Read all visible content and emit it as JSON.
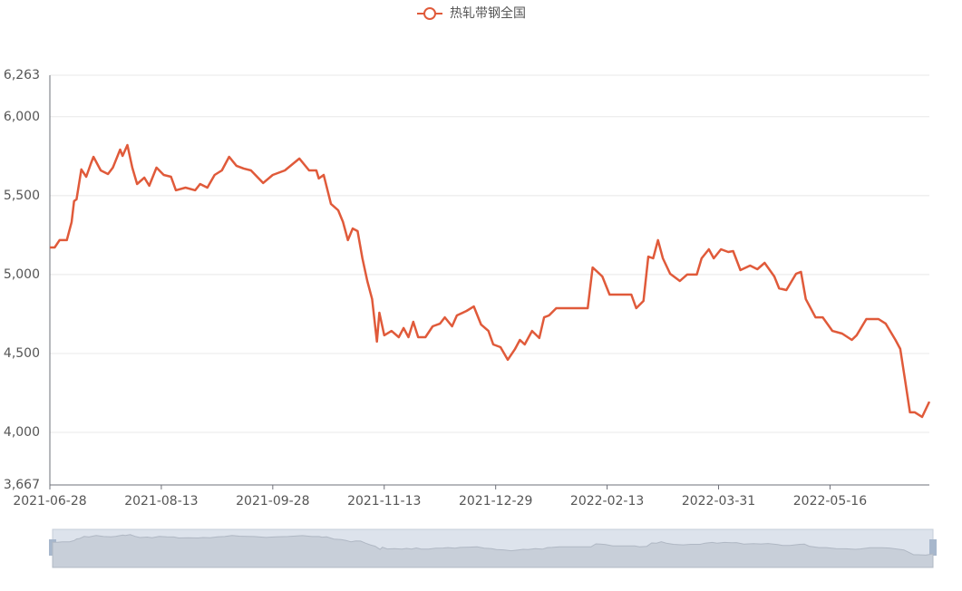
{
  "chart_data": {
    "type": "line",
    "xlim": [
      "2021-06-28",
      "2022-06-26"
    ],
    "xticks": [
      "2021-06-28",
      "2021-08-13",
      "2021-09-28",
      "2021-11-13",
      "2021-12-29",
      "2022-02-13",
      "2022-03-31",
      "2022-05-16"
    ],
    "ylim": [
      3667,
      6263
    ],
    "yticks": [
      {
        "value": 3667,
        "label": "3,667"
      },
      {
        "value": 4000,
        "label": "4,000"
      },
      {
        "value": 4500,
        "label": "4,500"
      },
      {
        "value": 5000,
        "label": "5,000"
      },
      {
        "value": 5500,
        "label": "5,500"
      },
      {
        "value": 6000,
        "label": "6,000"
      },
      {
        "value": 6263,
        "label": "6,263"
      }
    ],
    "grid": true,
    "legend": "top",
    "x": [
      "2021-06-28",
      "2021-06-30",
      "2021-07-02",
      "2021-07-05",
      "2021-07-07",
      "2021-07-08",
      "2021-07-09",
      "2021-07-11",
      "2021-07-13",
      "2021-07-15",
      "2021-07-16",
      "2021-07-19",
      "2021-07-22",
      "2021-07-24",
      "2021-07-27",
      "2021-07-28",
      "2021-07-30",
      "2021-08-01",
      "2021-08-03",
      "2021-08-06",
      "2021-08-08",
      "2021-08-11",
      "2021-08-14",
      "2021-08-17",
      "2021-08-19",
      "2021-08-23",
      "2021-08-27",
      "2021-08-29",
      "2021-09-01",
      "2021-09-04",
      "2021-09-07",
      "2021-09-10",
      "2021-09-13",
      "2021-09-16",
      "2021-09-19",
      "2021-09-24",
      "2021-09-28",
      "2021-10-03",
      "2021-10-09",
      "2021-10-13",
      "2021-10-16",
      "2021-10-17",
      "2021-10-19",
      "2021-10-22",
      "2021-10-25",
      "2021-10-27",
      "2021-10-29",
      "2021-10-31",
      "2021-11-02",
      "2021-11-04",
      "2021-11-06",
      "2021-11-08",
      "2021-11-10",
      "2021-11-11",
      "2021-11-13",
      "2021-11-16",
      "2021-11-19",
      "2021-11-21",
      "2021-11-23",
      "2021-11-25",
      "2021-11-27",
      "2021-11-30",
      "2021-12-03",
      "2021-12-06",
      "2021-12-08",
      "2021-12-11",
      "2021-12-13",
      "2021-12-17",
      "2021-12-20",
      "2021-12-23",
      "2021-12-26",
      "2021-12-28",
      "2021-12-31",
      "2022-01-03",
      "2022-01-06",
      "2022-01-08",
      "2022-01-10",
      "2022-01-13",
      "2022-01-16",
      "2022-01-18",
      "2022-01-20",
      "2022-01-23",
      "2022-02-05",
      "2022-02-07",
      "2022-02-09",
      "2022-02-11",
      "2022-02-14",
      "2022-02-23",
      "2022-02-25",
      "2022-02-28",
      "2022-03-02",
      "2022-03-04",
      "2022-03-06",
      "2022-03-08",
      "2022-03-11",
      "2022-03-15",
      "2022-03-18",
      "2022-03-22",
      "2022-03-24",
      "2022-03-27",
      "2022-03-29",
      "2022-04-01",
      "2022-04-04",
      "2022-04-06",
      "2022-04-09",
      "2022-04-13",
      "2022-04-16",
      "2022-04-19",
      "2022-04-23",
      "2022-04-25",
      "2022-04-28",
      "2022-05-02",
      "2022-05-04",
      "2022-05-06",
      "2022-05-10",
      "2022-05-13",
      "2022-05-17",
      "2022-05-21",
      "2022-05-25",
      "2022-05-27",
      "2022-05-31",
      "2022-06-05",
      "2022-06-08",
      "2022-06-12",
      "2022-06-14",
      "2022-06-16",
      "2022-06-18",
      "2022-06-20",
      "2022-06-23",
      "2022-06-26"
    ],
    "series": [
      {
        "name": "热轧带钢全国",
        "color": "#e05a3a",
        "values": [
          5172,
          5172,
          5218,
          5218,
          5333,
          5465,
          5477,
          5666,
          5620,
          5706,
          5746,
          5660,
          5637,
          5678,
          5792,
          5752,
          5821,
          5678,
          5574,
          5614,
          5563,
          5678,
          5631,
          5620,
          5534,
          5551,
          5534,
          5574,
          5551,
          5631,
          5660,
          5746,
          5689,
          5672,
          5660,
          5580,
          5631,
          5660,
          5735,
          5660,
          5660,
          5609,
          5631,
          5448,
          5407,
          5333,
          5218,
          5292,
          5275,
          5103,
          4959,
          4845,
          4575,
          4758,
          4615,
          4643,
          4603,
          4661,
          4603,
          4701,
          4603,
          4603,
          4672,
          4689,
          4729,
          4672,
          4741,
          4770,
          4798,
          4683,
          4643,
          4557,
          4540,
          4460,
          4529,
          4586,
          4557,
          4643,
          4598,
          4729,
          4741,
          4787,
          4787,
          5045,
          5017,
          4988,
          4873,
          4873,
          4787,
          4833,
          5114,
          5103,
          5218,
          5103,
          5005,
          4959,
          5000,
          5000,
          5103,
          5160,
          5103,
          5160,
          5143,
          5149,
          5028,
          5057,
          5034,
          5074,
          4988,
          4913,
          4902,
          5005,
          5017,
          4845,
          4729,
          4729,
          4643,
          4626,
          4586,
          4615,
          4718,
          4718,
          4689,
          4586,
          4529,
          4328,
          4127,
          4127,
          4098,
          4195
        ]
      }
    ]
  }
}
